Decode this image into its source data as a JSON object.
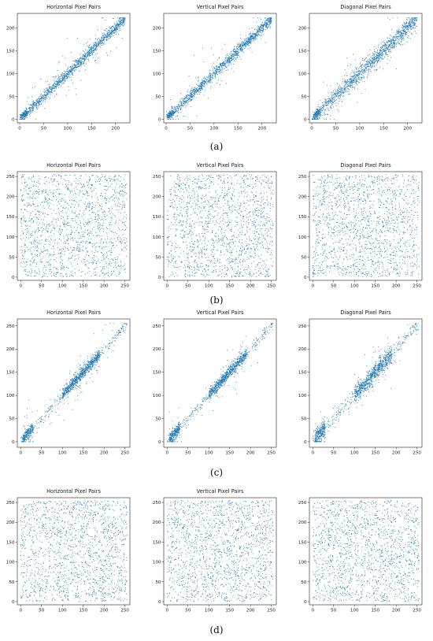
{
  "colors": {
    "point": "#1f77b4",
    "axes": "#222222"
  },
  "chart_data": [
    {
      "group": "(a)",
      "type": "scatter",
      "panels": [
        {
          "title": "Horizontal Pixel Pairs",
          "pattern": "diagonal-tight",
          "xlim": [
            -5,
            230
          ],
          "ylim": [
            -8,
            232
          ],
          "xticks": [
            0,
            50,
            100,
            150,
            200
          ],
          "yticks": [
            0,
            50,
            100,
            150,
            200
          ]
        },
        {
          "title": "Vertical Pixel Pairs",
          "pattern": "diagonal-tight",
          "xlim": [
            -5,
            230
          ],
          "ylim": [
            -8,
            232
          ],
          "xticks": [
            0,
            50,
            100,
            150,
            200
          ],
          "yticks": [
            0,
            50,
            100,
            150,
            200
          ]
        },
        {
          "title": "Diagonal Pixel Pairs",
          "pattern": "diagonal-medium",
          "xlim": [
            -5,
            230
          ],
          "ylim": [
            -8,
            232
          ],
          "xticks": [
            0,
            50,
            100,
            150,
            200
          ],
          "yticks": [
            0,
            50,
            100,
            150,
            200
          ]
        }
      ]
    },
    {
      "group": "(b)",
      "type": "scatter",
      "panels": [
        {
          "title": "Horizontal Pixel Pairs",
          "pattern": "uniform",
          "xlim": [
            -8,
            262
          ],
          "ylim": [
            -8,
            262
          ],
          "xticks": [
            0,
            50,
            100,
            150,
            200,
            250
          ],
          "yticks": [
            0,
            50,
            100,
            150,
            200,
            250
          ]
        },
        {
          "title": "Vertical Pixel Pairs",
          "pattern": "uniform",
          "xlim": [
            -8,
            262
          ],
          "ylim": [
            -8,
            262
          ],
          "xticks": [
            0,
            50,
            100,
            150,
            200,
            250
          ],
          "yticks": [
            0,
            50,
            100,
            150,
            200,
            250
          ]
        },
        {
          "title": "Diagonal Pixel Pairs",
          "pattern": "uniform",
          "xlim": [
            -8,
            262
          ],
          "ylim": [
            -8,
            262
          ],
          "xticks": [
            0,
            50,
            100,
            150,
            200,
            250
          ],
          "yticks": [
            0,
            50,
            100,
            150,
            200,
            250
          ]
        }
      ]
    },
    {
      "group": "(c)",
      "type": "scatter",
      "panels": [
        {
          "title": "Horizontal Pixel Pairs",
          "pattern": "diagonal-cluster",
          "xlim": [
            -8,
            262
          ],
          "ylim": [
            -12,
            265
          ],
          "xticks": [
            0,
            50,
            100,
            150,
            200,
            250
          ],
          "yticks": [
            0,
            50,
            100,
            150,
            200,
            250
          ]
        },
        {
          "title": "Vertical Pixel Pairs",
          "pattern": "diagonal-cluster",
          "xlim": [
            -8,
            262
          ],
          "ylim": [
            -12,
            265
          ],
          "xticks": [
            0,
            50,
            100,
            150,
            200,
            250
          ],
          "yticks": [
            0,
            50,
            100,
            150,
            200,
            250
          ]
        },
        {
          "title": "Diagonal Pixel Pairs",
          "pattern": "diagonal-cluster-wide",
          "xlim": [
            -8,
            262
          ],
          "ylim": [
            -12,
            265
          ],
          "xticks": [
            0,
            50,
            100,
            150,
            200,
            250
          ],
          "yticks": [
            0,
            50,
            100,
            150,
            200,
            250
          ]
        }
      ]
    },
    {
      "group": "(d)",
      "type": "scatter",
      "panels": [
        {
          "title": "Horizontal Pixel Pairs",
          "pattern": "uniform",
          "xlim": [
            -8,
            262
          ],
          "ylim": [
            -8,
            262
          ],
          "xticks": [
            0,
            50,
            100,
            150,
            200,
            250
          ],
          "yticks": [
            0,
            50,
            100,
            150,
            200,
            250
          ]
        },
        {
          "title": "Vertical Pixel Pairs",
          "pattern": "uniform",
          "xlim": [
            -8,
            262
          ],
          "ylim": [
            -8,
            262
          ],
          "xticks": [
            0,
            50,
            100,
            150,
            200,
            250
          ],
          "yticks": [
            0,
            50,
            100,
            150,
            200,
            250
          ]
        },
        {
          "title": "",
          "pattern": "uniform",
          "xlim": [
            -8,
            262
          ],
          "ylim": [
            -8,
            262
          ],
          "xticks": [
            0,
            50,
            100,
            150,
            200,
            250
          ],
          "yticks": [
            0,
            50,
            100,
            150,
            200,
            250
          ]
        }
      ]
    }
  ]
}
